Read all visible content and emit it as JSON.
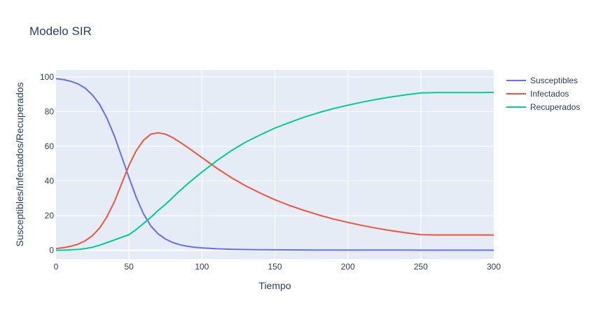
{
  "chart_data": {
    "type": "line",
    "title": "Modelo SIR",
    "xlabel": "Tiempo",
    "ylabel": "Susceptibles/Infectados/Recuperados",
    "xlim": [
      0,
      300
    ],
    "ylim": [
      -5,
      104
    ],
    "xticks": [
      0,
      50,
      100,
      150,
      200,
      250,
      300
    ],
    "yticks": [
      0,
      20,
      40,
      60,
      80,
      100
    ],
    "grid": true,
    "legend_position": "top-right",
    "x": [
      0,
      5,
      10,
      15,
      20,
      25,
      30,
      35,
      40,
      45,
      50,
      55,
      60,
      65,
      70,
      75,
      80,
      85,
      90,
      95,
      100,
      110,
      120,
      130,
      140,
      150,
      160,
      170,
      180,
      190,
      200,
      210,
      220,
      230,
      240,
      250,
      260,
      270,
      280,
      290,
      300
    ],
    "series": [
      {
        "name": "Susceptibles",
        "color": "#636efa",
        "values": [
          99,
          98.5,
          97.5,
          96,
          93.5,
          89.5,
          84,
          76,
          66,
          54,
          42,
          30.5,
          21,
          14,
          9.5,
          6.5,
          4.5,
          3.2,
          2.3,
          1.8,
          1.4,
          0.9,
          0.6,
          0.45,
          0.35,
          0.3,
          0.25,
          0.2,
          0.18,
          0.16,
          0.15,
          0.14,
          0.13,
          0.12,
          0.11,
          0.1,
          0.1,
          0.1,
          0.1,
          0.1,
          0.1
        ]
      },
      {
        "name": "Infectados",
        "color": "#ef553b",
        "values": [
          1,
          1.5,
          2.3,
          3.5,
          5.5,
          8.5,
          13,
          19.5,
          28,
          38.5,
          49,
          57.5,
          63.5,
          67,
          67.8,
          67,
          65,
          62.3,
          59.5,
          56.5,
          53.5,
          47.5,
          42,
          37.2,
          33,
          29.2,
          25.9,
          23,
          20.4,
          18.1,
          16.1,
          14.3,
          12.7,
          11.3,
          10.1,
          9,
          8.9,
          8.9,
          8.9,
          8.9,
          8.8
        ]
      },
      {
        "name": "Recuperados",
        "color": "#00cc96",
        "values": [
          0,
          0.1,
          0.3,
          0.5,
          1,
          1.8,
          3,
          4.5,
          6,
          7.5,
          9,
          12,
          15.5,
          19,
          23,
          26.5,
          30.5,
          34.5,
          38.2,
          41.7,
          45.1,
          51.6,
          57.4,
          62.4,
          66.6,
          70.5,
          73.7,
          76.8,
          79.4,
          81.7,
          83.7,
          85.5,
          87.1,
          88.5,
          89.7,
          90.8,
          91,
          91,
          91,
          91,
          91.1
        ]
      }
    ]
  }
}
